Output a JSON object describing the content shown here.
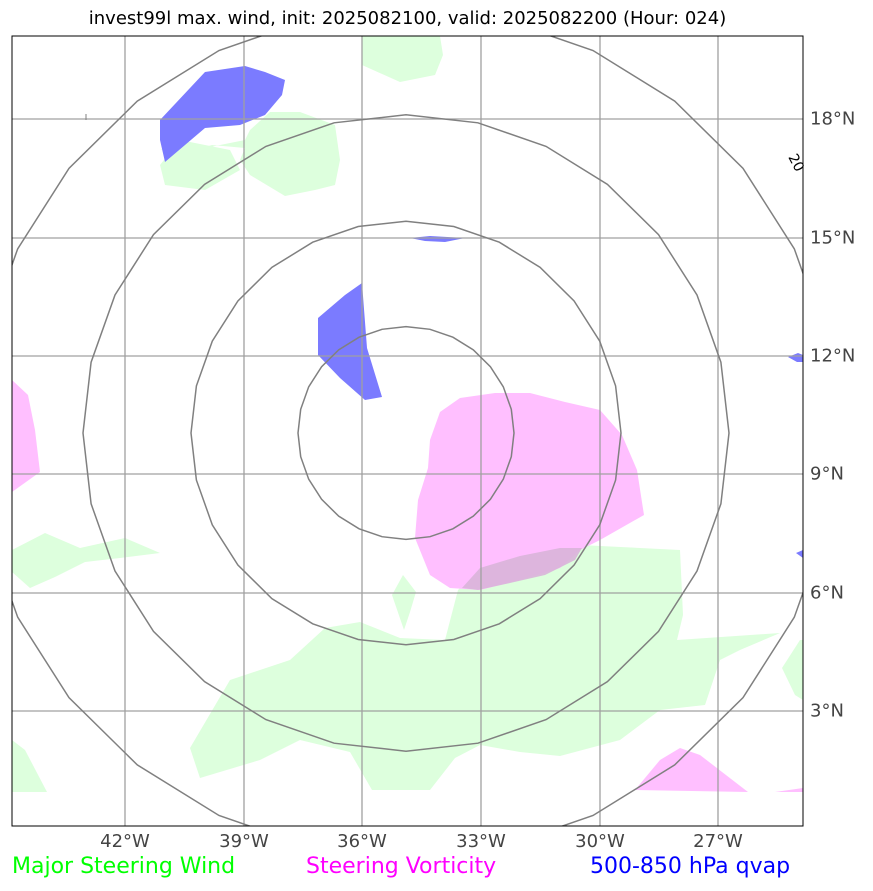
{
  "title": "invest99l max. wind, init: 2025082100, valid: 2025082200 (Hour: 024)",
  "lon_labels": [
    "42°W",
    "39°W",
    "36°W",
    "33°W",
    "30°W",
    "27°W"
  ],
  "lat_labels": [
    "18°N",
    "15°N",
    "12°N",
    "9°N",
    "6°N",
    "3°N"
  ],
  "edge_contour_label": "20",
  "legend": {
    "green": {
      "label": "Major Steering Wind",
      "color": "#00ff00"
    },
    "magenta": {
      "label": "Steering Vorticity",
      "color": "#ff00ff"
    },
    "blue": {
      "label": "500-850 hPa qvap",
      "color": "#0000ff"
    }
  },
  "colors": {
    "green_fill": "#ddffdd",
    "magenta_fill": "#ffbfff",
    "blue_fill": "#7b7bff",
    "grid": "#a0a0a0",
    "ring": "#808080"
  }
}
